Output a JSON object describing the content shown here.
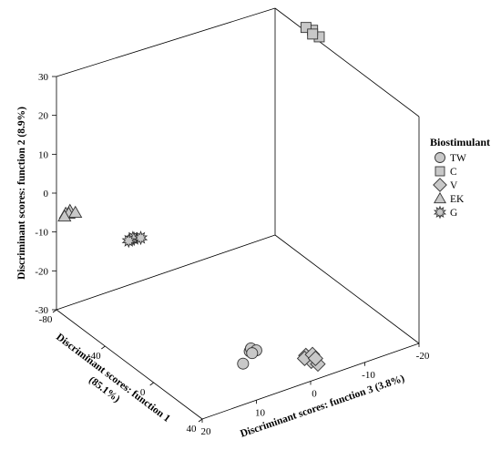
{
  "chart_data": {
    "type": "scatter",
    "projection": "3d",
    "title": "",
    "axes": {
      "y": {
        "label": "Discriminant scores: function 2 (8.9%)",
        "range": [
          -30,
          30
        ],
        "ticks": [
          "30",
          "20",
          "10",
          "0",
          "-10",
          "-20",
          "-30"
        ]
      },
      "x": {
        "label_line1": "Discriminant scores: function 1",
        "label_line2": "(85.1%)",
        "range": [
          -80,
          40
        ],
        "ticks": [
          "-80",
          "-40",
          "0",
          "40"
        ]
      },
      "z": {
        "label": "Discriminant scores: function 3 (3.8%)",
        "range": [
          -20,
          20
        ],
        "ticks": [
          "20",
          "10",
          "0",
          "-10",
          "-20"
        ]
      }
    },
    "legend": {
      "title": "Biostimulant",
      "position": "right",
      "entries": [
        {
          "name": "TW",
          "marker": "circle"
        },
        {
          "name": "C",
          "marker": "square"
        },
        {
          "name": "V",
          "marker": "diamond"
        },
        {
          "name": "EK",
          "marker": "triangle"
        },
        {
          "name": "G",
          "marker": "star"
        }
      ]
    },
    "series": [
      {
        "name": "TW",
        "marker": "circle",
        "points": [
          [
            30,
            -20,
            9
          ],
          [
            31,
            -19,
            9
          ],
          [
            31,
            -20,
            8
          ],
          [
            32,
            -20,
            9
          ],
          [
            29,
            -23,
            10
          ]
        ]
      },
      {
        "name": "C",
        "marker": "square",
        "points": [
          [
            -60,
            25,
            -24
          ],
          [
            -61,
            27,
            -23
          ],
          [
            -62,
            28,
            -22
          ],
          [
            -61,
            26,
            -23
          ]
        ]
      },
      {
        "name": "V",
        "marker": "diamond",
        "points": [
          [
            45,
            -21,
            2
          ],
          [
            46,
            -22,
            1
          ],
          [
            45,
            -23,
            1
          ],
          [
            46,
            -24,
            0
          ],
          [
            44,
            -22,
            2
          ],
          [
            46,
            -21,
            1
          ],
          [
            44,
            -23,
            0
          ]
        ]
      },
      {
        "name": "EK",
        "marker": "triangle",
        "points": [
          [
            -60,
            2,
            22
          ],
          [
            -59,
            2,
            23
          ],
          [
            -61,
            1,
            22
          ],
          [
            -60,
            1,
            21
          ],
          [
            -60,
            1,
            23
          ]
        ]
      },
      {
        "name": "G",
        "marker": "star",
        "points": [
          [
            -25,
            1,
            18
          ],
          [
            -26,
            1,
            18
          ],
          [
            -25,
            1,
            19
          ],
          [
            -24,
            1,
            17
          ]
        ]
      }
    ],
    "colors": {
      "marker_fill": "#c8c8c8",
      "marker_stroke": "#333333"
    },
    "grid": false
  }
}
